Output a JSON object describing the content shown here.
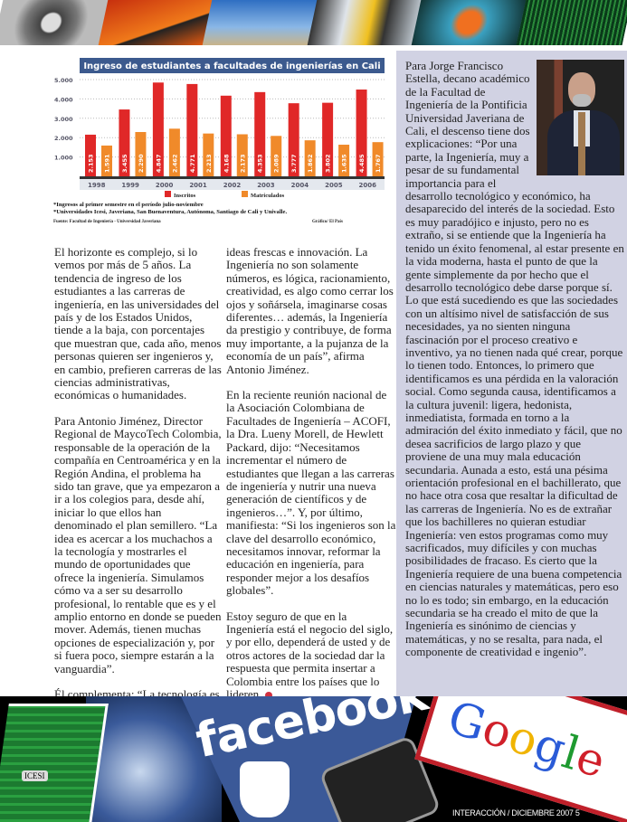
{
  "chart_data": {
    "type": "bar",
    "title": "Ingreso de estudiantes a facultades de ingenierías en Cali",
    "categories": [
      "1998",
      "1999",
      "2000",
      "2001",
      "2002",
      "2003",
      "2004",
      "2005",
      "2006"
    ],
    "series": [
      {
        "name": "Inscritos",
        "color": "#e02828",
        "values": [
          2153,
          3455,
          4847,
          4771,
          4168,
          4353,
          3777,
          3802,
          4485
        ],
        "labels": [
          "2.153",
          "3.455",
          "4.847",
          "4.771",
          "4.168",
          "4.353",
          "3.777",
          "3.802",
          "4.485"
        ]
      },
      {
        "name": "Matriculados",
        "color": "#f08a2a",
        "values": [
          1591,
          2290,
          2462,
          2213,
          2173,
          2089,
          1862,
          1635,
          1767
        ],
        "labels": [
          "1.591",
          "2.290",
          "2.462",
          "2.213",
          "2.173",
          "2.089",
          "1.862",
          "1.635",
          "1.767"
        ]
      }
    ],
    "yticks": [
      "1.000",
      "2.000",
      "3.000",
      "4.000",
      "5.000"
    ],
    "ylim": [
      0,
      5500
    ],
    "grid": true,
    "legend": "bottom",
    "title_bg": "#3c5a8e",
    "notes": [
      "*Ingresos al primer semestre en el período julio-noviembre",
      "*Universidades Icesi, Javeriana, San Buenaventura, Autónoma, Santiago de Cali y Univalle."
    ],
    "source": "Fuente: Facultad de Ingeniería - Universidad Javeriana",
    "credit": "Gráfico/ El País"
  },
  "article": {
    "col1": [
      "El horizonte es complejo, si lo vemos por más de 5 años. La tendencia de ingreso de los estudiantes a las carreras de ingeniería, en las universidades del país y de los Estados Unidos, tiende a la baja, con porcentajes que muestran que, cada año, menos personas quieren ser ingenieros y, en cambio, prefieren carreras de las ciencias administrativas, económicas o humanidades.",
      "Para Antonio Jiménez, Director Regional de MaycoTech Colombia, responsable de la operación de la compañía en Centroamérica y en la Región Andina, el problema ha sido tan grave, que ya empezaron a ir a los colegios para, desde ahí, iniciar lo que ellos han denominado el plan semillero. “La idea es acercar a los muchachos a la tecnología y mostrarles el mundo de oportunidades que ofrece la ingeniería. Simulamos cómo va a ser su desarrollo profesional, lo rentable que es y el amplio entorno en donde se pueden mover. Además, tienen muchas opciones de especialización y, por si fuera poco, siempre estarán a la vanguardia”.",
      "Él complementa: “La tecnología es muy atractiva, es creatividad; son"
    ],
    "col2": [
      "ideas frescas e innovación. La Ingeniería no son solamente números, es lógica, racionamiento, creatividad, es algo como cerrar los ojos y soñársela, imaginarse cosas diferentes… además, la Ingeniería da prestigio y contribuye, de forma muy importante, a la pujanza de la economía de un país”, afirma Antonio Jiménez.",
      "En la reciente reunión nacional de la Asociación Colombiana de Facultades de Ingeniería – ACOFI, la Dra. Lueny Morell, de Hewlett Packard, dijo: “Necesitamos incrementar el número de estudiantes que llegan a las carreras de ingeniería y nutrir una nueva generación de científicos y de ingenieros…”.  Y, por último, manifiesta: “Si los ingenieros son la clave del desarrollo económico, necesitamos innovar, reformar la educación en ingeniería, para responder mejor a los desafíos globales”.",
      "Estoy seguro de que en la Ingeniería está el negocio del siglo, y por ello, dependerá de usted y de otros actores de la sociedad dar la respuesta que permita insertar a Colombia entre los países que lo lideren."
    ],
    "sidebar": "Para Jorge Francisco Estella, decano académico de la Facultad de Ingeniería de la Pontificia Universidad Javeriana de Cali, el descenso tiene dos explicaciones: “Por una parte, la Ingeniería, muy a pesar de su fundamental importancia para el desarrollo tecnológico y económico, ha desaparecido del interés de la sociedad. Esto es muy paradójico e injusto, pero no es extraño, si se entiende que la Ingeniería ha tenido un éxito fenomenal, al estar presente en la vida moderna, hasta el punto de que la gente simplemente da por hecho que el desarrollo tecnológico debe darse porque sí. Lo que está sucediendo es que las sociedades con un altísimo nivel de satisfacción de sus necesidades, ya no sienten ninguna fascinación por el proceso creativo e inventivo, ya no tienen nada qué crear, porque lo tienen todo. Entonces, lo primero que identificamos es una pérdida en la valoración social. Como segunda causa, identificamos a la cultura juvenil: ligera, hedonista, inmediatista, formada en torno a la admiración del éxito inmediato y fácil, que no desea sacrificios de largo plazo y que proviene de una muy mala educación secundaria. Aunada a esto, está una pésima orientación profesional en el bachillerato, que no hace otra cosa que resaltar la dificultad de las carreras de Ingeniería. No es de extrañar que los bachilleres no quieran estudiar Ingeniería: ven estos programas como muy sacrificados, muy difíciles y con muchas posibilidades de fracaso. Es cierto que la Ingeniería requiere de una buena competencia en ciencias naturales y matemáticas, pero eso no lo es todo; sin embargo, en la educación secundaria se ha creado el mito de que la Ingeniería es sinónimo de ciencias y matemáticas, y no se resalta, para nada, el componente de creatividad e ingenio”."
  },
  "collage": {
    "facebook": "facebook",
    "google": "Google",
    "logo": "ICESI",
    "footer": "INTERACCIÓN / DICIEMBRE 2007  5"
  }
}
